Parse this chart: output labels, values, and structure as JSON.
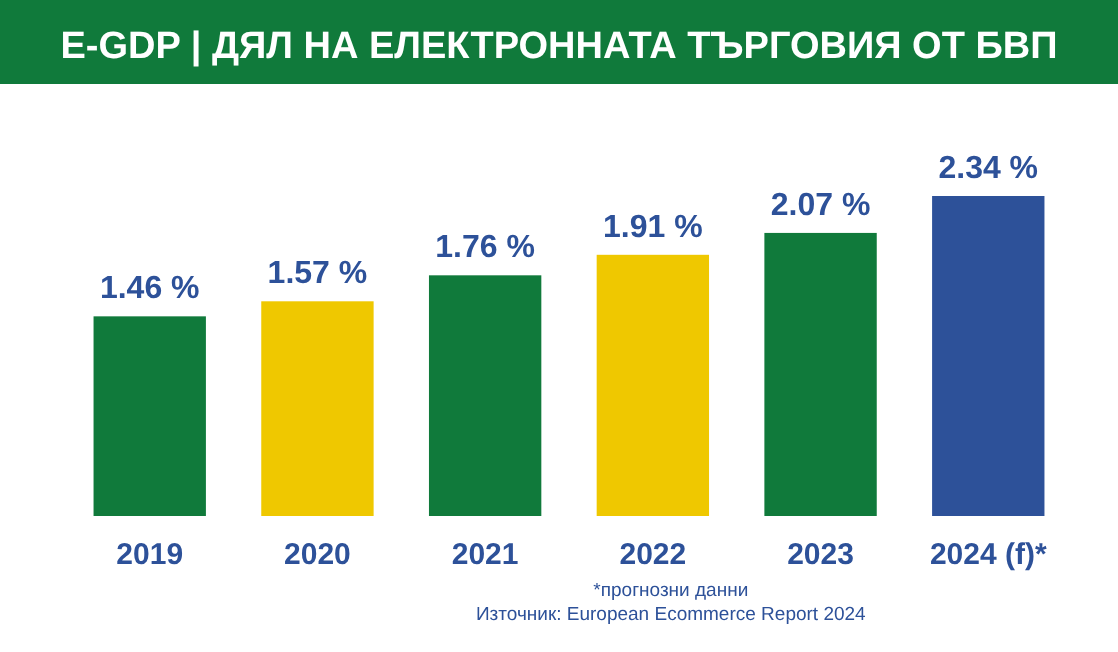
{
  "chart_data": {
    "type": "bar",
    "title": "E-GDP | ДЯЛ НА ЕЛЕКТРОННАТА ТЪРГОВИЯ ОТ БВП",
    "categories": [
      "2019",
      "2020",
      "2021",
      "2022",
      "2023",
      "2024 (f)*"
    ],
    "values": [
      1.46,
      1.57,
      1.76,
      1.91,
      2.07,
      2.34
    ],
    "value_labels": [
      "1.46 %",
      "1.57 %",
      "1.76 %",
      "1.91 %",
      "2.07 %",
      "2.34 %"
    ],
    "colors": [
      "#107a3b",
      "#efc800",
      "#107a3b",
      "#efc800",
      "#107a3b",
      "#2d5199"
    ],
    "annotations": [
      "*прогнозни данни",
      "Източник: European Ecommerce Report 2024"
    ]
  }
}
